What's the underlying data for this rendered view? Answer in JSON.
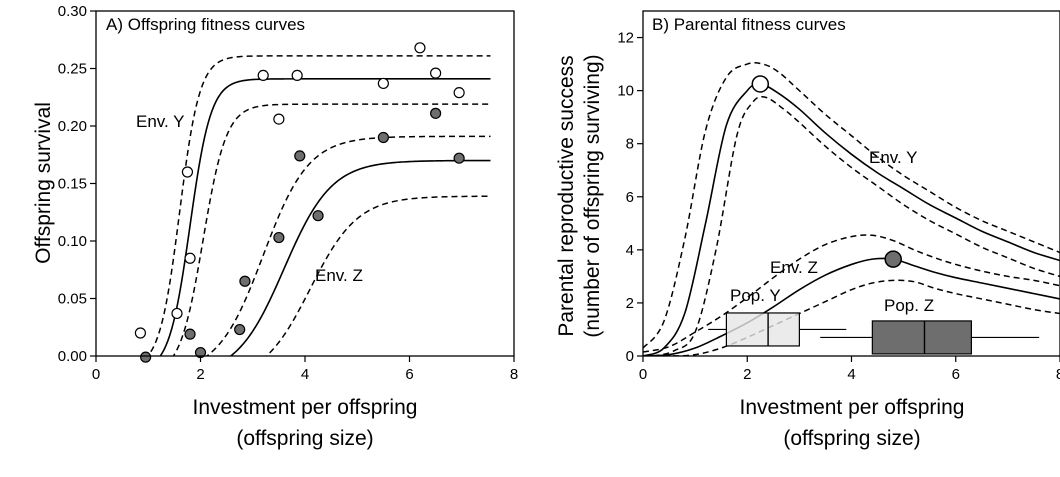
{
  "chart_data": [
    {
      "type": "scatter",
      "title": "A) Offspring fitness curves",
      "xlabel": [
        "Investment per offspring",
        "(offspring size)"
      ],
      "ylabel": "Offspring survival",
      "xlim": [
        0,
        8
      ],
      "ylim": [
        0,
        0.3
      ],
      "xticks": [
        "0",
        "2",
        "4",
        "6",
        "8"
      ],
      "yticks": [
        "0.00",
        "0.05",
        "0.10",
        "0.15",
        "0.20",
        "0.25",
        "0.30"
      ],
      "series": [
        {
          "name": "Env. Y",
          "marker": "open-circle",
          "color": "#ffffff",
          "points": [
            [
              0.85,
              0.02
            ],
            [
              1.55,
              0.037
            ],
            [
              1.75,
              0.16
            ],
            [
              1.8,
              0.085
            ],
            [
              3.2,
              0.244
            ],
            [
              3.5,
              0.206
            ],
            [
              3.85,
              0.244
            ],
            [
              5.5,
              0.237
            ],
            [
              6.2,
              0.268
            ],
            [
              6.5,
              0.246
            ],
            [
              6.95,
              0.229
            ]
          ],
          "fit": {
            "L": 0.255,
            "x0": 1.8,
            "k": 5.0,
            "s": 0.014
          },
          "ci_upper": {
            "L": 0.272,
            "x0": 1.6,
            "k": 5.2,
            "s": 0.011
          },
          "ci_lower": {
            "L": 0.236,
            "x0": 2.05,
            "k": 4.5,
            "s": 0.017
          }
        },
        {
          "name": "Env. Z",
          "marker": "filled-circle",
          "color": "#6e6e6e",
          "points": [
            [
              0.95,
              -0.001
            ],
            [
              1.8,
              0.019
            ],
            [
              2.0,
              0.003
            ],
            [
              2.75,
              0.023
            ],
            [
              2.85,
              0.065
            ],
            [
              3.5,
              0.103
            ],
            [
              3.9,
              0.174
            ],
            [
              4.25,
              0.122
            ],
            [
              5.5,
              0.19
            ],
            [
              6.5,
              0.211
            ],
            [
              6.95,
              0.172
            ]
          ],
          "fit": {
            "L": 0.188,
            "x0": 3.6,
            "k": 2.2,
            "s": 0.018
          },
          "ci_upper": {
            "L": 0.207,
            "x0": 3.2,
            "k": 2.3,
            "s": 0.016
          },
          "ci_lower": {
            "L": 0.161,
            "x0": 4.1,
            "k": 2.2,
            "s": 0.022
          }
        }
      ],
      "annotations": [
        "Env. Y",
        "Env. Z"
      ]
    },
    {
      "type": "line",
      "title": "B) Parental fitness curves",
      "xlabel": [
        "Investment per offspring",
        "(offspring size)"
      ],
      "ylabel": [
        "Parental reproductive success",
        "(number of offspring surviving)"
      ],
      "xlim": [
        0,
        8
      ],
      "ylim": [
        0,
        13
      ],
      "xticks": [
        "0",
        "2",
        "4",
        "6",
        "8"
      ],
      "yticks": [
        "0",
        "2",
        "4",
        "6",
        "8",
        "10",
        "12"
      ],
      "series": [
        {
          "name": "Env. Y",
          "mean": [
            [
              0,
              0
            ],
            [
              0.4,
              0.3
            ],
            [
              0.8,
              1.6
            ],
            [
              1.2,
              5.0
            ],
            [
              1.6,
              8.7
            ],
            [
              2.0,
              10.0
            ],
            [
              2.25,
              10.25
            ],
            [
              2.6,
              9.9
            ],
            [
              3.0,
              9.3
            ],
            [
              3.5,
              8.4
            ],
            [
              4.0,
              7.6
            ],
            [
              4.5,
              6.9
            ],
            [
              5.0,
              6.3
            ],
            [
              5.5,
              5.7
            ],
            [
              6.0,
              5.2
            ],
            [
              6.5,
              4.7
            ],
            [
              7.0,
              4.3
            ],
            [
              7.5,
              3.9
            ],
            [
              8.0,
              3.6
            ]
          ],
          "upper": [
            [
              0,
              0.3
            ],
            [
              0.4,
              1.3
            ],
            [
              0.8,
              4.4
            ],
            [
              1.2,
              8.5
            ],
            [
              1.6,
              10.5
            ],
            [
              2.0,
              11.0
            ],
            [
              2.3,
              11.0
            ],
            [
              2.6,
              10.7
            ],
            [
              3.0,
              10.0
            ],
            [
              3.5,
              9.1
            ],
            [
              4.0,
              8.3
            ],
            [
              4.5,
              7.5
            ],
            [
              5.0,
              6.8
            ],
            [
              5.5,
              6.2
            ],
            [
              6.0,
              5.6
            ],
            [
              6.5,
              5.1
            ],
            [
              7.0,
              4.7
            ],
            [
              7.5,
              4.3
            ],
            [
              8.0,
              3.9
            ]
          ],
          "lower": [
            [
              0.2,
              0
            ],
            [
              0.6,
              0.2
            ],
            [
              1.0,
              0.9
            ],
            [
              1.4,
              4.0
            ],
            [
              1.8,
              8.3
            ],
            [
              2.1,
              9.55
            ],
            [
              2.35,
              9.75
            ],
            [
              2.7,
              9.3
            ],
            [
              3.0,
              8.8
            ],
            [
              3.5,
              7.9
            ],
            [
              4.0,
              7.1
            ],
            [
              4.5,
              6.4
            ],
            [
              5.0,
              5.7
            ],
            [
              5.5,
              5.1
            ],
            [
              6.0,
              4.6
            ],
            [
              6.5,
              4.1
            ],
            [
              7.0,
              3.7
            ],
            [
              7.5,
              3.3
            ],
            [
              8.0,
              3.0
            ]
          ],
          "optimum": {
            "x": 2.25,
            "y": 10.25,
            "marker": "open-circle"
          }
        },
        {
          "name": "Env. Z",
          "mean": [
            [
              0,
              0
            ],
            [
              0.5,
              0.05
            ],
            [
              1.0,
              0.3
            ],
            [
              1.5,
              0.75
            ],
            [
              2.0,
              1.25
            ],
            [
              2.5,
              1.85
            ],
            [
              3.0,
              2.5
            ],
            [
              3.5,
              3.05
            ],
            [
              4.0,
              3.45
            ],
            [
              4.4,
              3.65
            ],
            [
              4.8,
              3.65
            ],
            [
              5.2,
              3.4
            ],
            [
              5.6,
              3.15
            ],
            [
              6.0,
              2.95
            ],
            [
              6.5,
              2.75
            ],
            [
              7.0,
              2.55
            ],
            [
              7.5,
              2.35
            ],
            [
              8.0,
              2.15
            ]
          ],
          "upper": [
            [
              0,
              0.15
            ],
            [
              0.5,
              0.35
            ],
            [
              1.0,
              0.9
            ],
            [
              1.5,
              1.5
            ],
            [
              2.0,
              2.2
            ],
            [
              2.5,
              2.95
            ],
            [
              3.0,
              3.65
            ],
            [
              3.5,
              4.2
            ],
            [
              4.0,
              4.5
            ],
            [
              4.4,
              4.55
            ],
            [
              4.8,
              4.35
            ],
            [
              5.2,
              4.0
            ],
            [
              5.6,
              3.7
            ],
            [
              6.0,
              3.45
            ],
            [
              6.5,
              3.2
            ],
            [
              7.0,
              3.0
            ],
            [
              7.5,
              2.85
            ],
            [
              8.0,
              2.65
            ]
          ],
          "lower": [
            [
              0,
              0
            ],
            [
              0.5,
              0
            ],
            [
              1.0,
              0.05
            ],
            [
              1.5,
              0.3
            ],
            [
              2.0,
              0.7
            ],
            [
              2.5,
              1.15
            ],
            [
              3.0,
              1.6
            ],
            [
              3.5,
              2.05
            ],
            [
              4.0,
              2.5
            ],
            [
              4.4,
              2.75
            ],
            [
              4.8,
              2.85
            ],
            [
              5.2,
              2.8
            ],
            [
              5.6,
              2.55
            ],
            [
              6.0,
              2.35
            ],
            [
              6.5,
              2.15
            ],
            [
              7.0,
              1.95
            ],
            [
              7.5,
              1.75
            ],
            [
              8.0,
              1.6
            ]
          ],
          "optimum": {
            "x": 4.8,
            "y": 3.65,
            "marker": "filled-circle"
          }
        }
      ],
      "boxplots": [
        {
          "name": "Pop. Y",
          "y": 1.0,
          "whisker_low": 1.25,
          "q1": 1.6,
          "median": 2.4,
          "q3": 3.0,
          "whisker_high": 3.9,
          "color": "#e6e6e6"
        },
        {
          "name": "Pop. Z",
          "y": 0.7,
          "whisker_low": 3.4,
          "q1": 4.4,
          "median": 5.4,
          "q3": 6.3,
          "whisker_high": 7.6,
          "color": "#6e6e6e"
        }
      ],
      "annotations": [
        "Env. Y",
        "Env. Z",
        "Pop. Y",
        "Pop. Z"
      ]
    }
  ],
  "colors": {
    "axis": "#000000",
    "filled_marker": "#6e6e6e",
    "light_box": "#e6e6e6",
    "dark_box": "#6e6e6e"
  }
}
